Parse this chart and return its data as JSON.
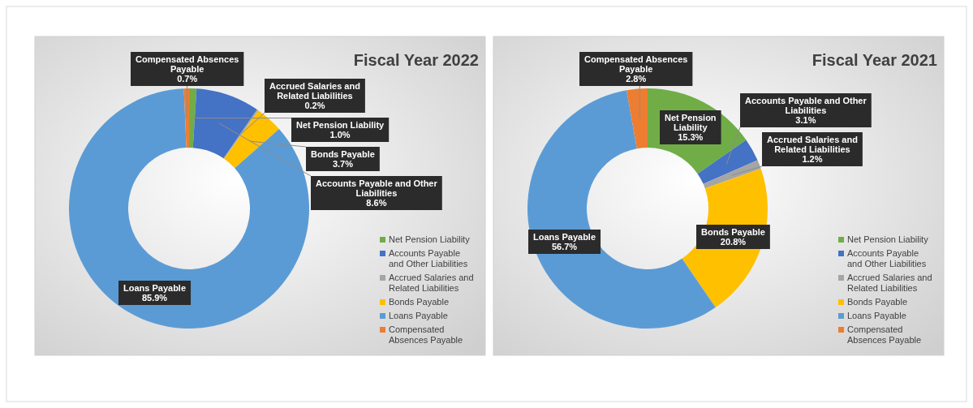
{
  "chart_data": [
    {
      "type": "donut",
      "title": "Fiscal Year 2022",
      "categories": [
        "Net Pension Liability",
        "Accounts Payable and Other Liabilities",
        "Accrued Salaries and Related Liabilities",
        "Bonds Payable",
        "Loans Payable",
        "Compensated Absences Payable"
      ],
      "values": [
        1.0,
        8.6,
        0.2,
        3.7,
        85.9,
        0.7
      ],
      "value_labels": [
        "1.0%",
        "8.6%",
        "0.2%",
        "3.7%",
        "85.9%",
        "0.7%"
      ],
      "colors": [
        "#70ad47",
        "#4472c4",
        "#a5a5a5",
        "#ffc000",
        "#5b9bd5",
        "#ed7d31"
      ],
      "legend": "bottom right"
    },
    {
      "type": "donut",
      "title": "Fiscal Year 2021",
      "categories": [
        "Net Pension Liability",
        "Accounts Payable and Other Liabilities",
        "Accrued Salaries and Related Liabilities",
        "Bonds Payable",
        "Loans Payable",
        "Compensated Absences Payable"
      ],
      "values": [
        15.3,
        3.1,
        1.2,
        20.8,
        56.7,
        2.8
      ],
      "value_labels": [
        "15.3%",
        "3.1%",
        "1.2%",
        "20.8%",
        "56.7%",
        "2.8%"
      ],
      "colors": [
        "#70ad47",
        "#4472c4",
        "#a5a5a5",
        "#ffc000",
        "#5b9bd5",
        "#ed7d31"
      ],
      "legend": "bottom right"
    }
  ]
}
